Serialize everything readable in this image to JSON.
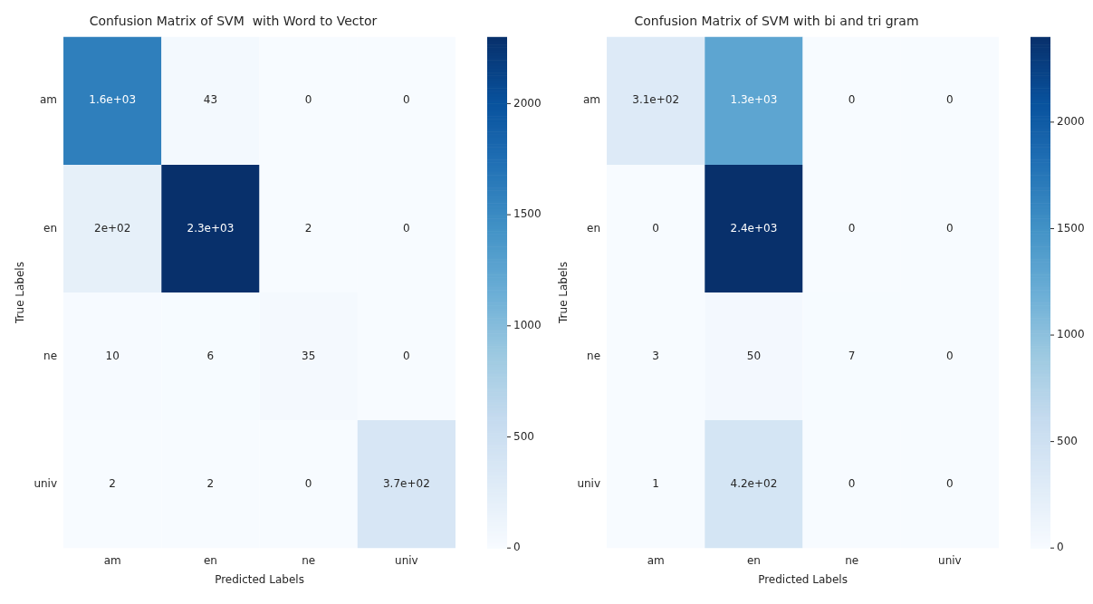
{
  "chart_data": [
    {
      "type": "heatmap",
      "title": "Confusion Matrix of SVM  with Word to Vector",
      "xlabel": "Predicted Labels",
      "ylabel": "True Labels",
      "categories": [
        "am",
        "en",
        "ne",
        "univ"
      ],
      "y_categories": [
        "am",
        "en",
        "ne",
        "univ"
      ],
      "cells": [
        [
          1600,
          43,
          0,
          0
        ],
        [
          200,
          2300,
          2,
          0
        ],
        [
          10,
          6,
          35,
          0
        ],
        [
          2,
          2,
          0,
          370
        ]
      ],
      "cell_labels": [
        [
          "1.6e+03",
          "43",
          "0",
          "0"
        ],
        [
          "2e+02",
          "2.3e+03",
          "2",
          "0"
        ],
        [
          "10",
          "6",
          "35",
          "0"
        ],
        [
          "2",
          "2",
          "0",
          "3.7e+02"
        ]
      ],
      "clim": [
        0,
        2300
      ],
      "cticks": [
        0,
        500,
        1000,
        1500,
        2000
      ]
    },
    {
      "type": "heatmap",
      "title": "Confusion Matrix of SVM with bi and tri gram",
      "xlabel": "Predicted Labels",
      "ylabel": "True Labels",
      "categories": [
        "am",
        "en",
        "ne",
        "univ"
      ],
      "y_categories": [
        "am",
        "en",
        "ne",
        "univ"
      ],
      "cells": [
        [
          310,
          1300,
          0,
          0
        ],
        [
          0,
          2400,
          0,
          0
        ],
        [
          3,
          50,
          7,
          0
        ],
        [
          1,
          420,
          0,
          0
        ]
      ],
      "cell_labels": [
        [
          "3.1e+02",
          "1.3e+03",
          "0",
          "0"
        ],
        [
          "0",
          "2.4e+03",
          "0",
          "0"
        ],
        [
          "3",
          "50",
          "7",
          "0"
        ],
        [
          "1",
          "4.2e+02",
          "0",
          "0"
        ]
      ],
      "clim": [
        0,
        2400
      ],
      "cticks": [
        0,
        500,
        1000,
        1500,
        2000
      ]
    }
  ]
}
